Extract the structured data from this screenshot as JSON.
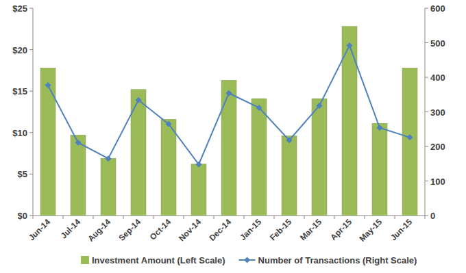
{
  "chart_data": {
    "type": "bar",
    "categories": [
      "Jun-14",
      "Jul-14",
      "Aug-14",
      "Sep-14",
      "Oct-14",
      "Nov-14",
      "Dec-14",
      "Jan-15",
      "Feb-15",
      "Mar-15",
      "Apr-15",
      "May-15",
      "Jun-15"
    ],
    "series": [
      {
        "name": "Investment Amount (Left Scale)",
        "type": "bar",
        "color": "#9bbb59",
        "values": [
          17.8,
          9.7,
          6.9,
          15.2,
          11.6,
          6.2,
          16.3,
          14.1,
          9.6,
          14.1,
          22.8,
          11.1,
          17.8
        ]
      },
      {
        "name": "Number of Transactions (Right Scale)",
        "type": "line",
        "axis": "y2",
        "color": "#4f81bd",
        "marker": "diamond",
        "values": [
          377,
          211,
          165,
          334,
          265,
          148,
          354,
          312,
          218,
          318,
          492,
          254,
          226
        ]
      }
    ],
    "ylim": [
      0,
      25
    ],
    "yticks": [
      {
        "value": 0,
        "label": "$0"
      },
      {
        "value": 5,
        "label": "$5"
      },
      {
        "value": 10,
        "label": "$10"
      },
      {
        "value": 15,
        "label": "$15"
      },
      {
        "value": 20,
        "label": "$20"
      },
      {
        "value": 25,
        "label": "$25"
      }
    ],
    "y2lim": [
      0,
      600
    ],
    "y2ticks": [
      0,
      100,
      200,
      300,
      400,
      500,
      600
    ],
    "grid": false,
    "legend": "bottom"
  }
}
